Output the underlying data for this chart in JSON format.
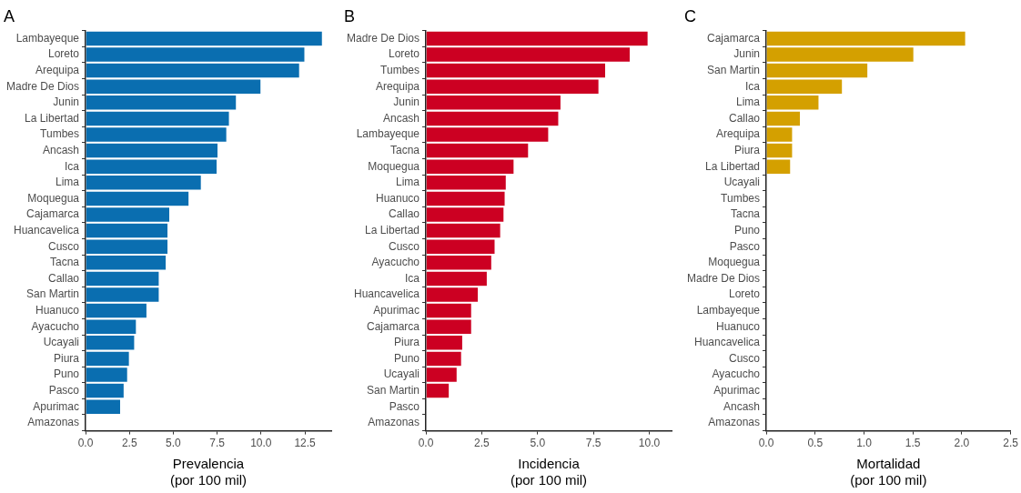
{
  "chart_data": [
    {
      "type": "bar",
      "orientation": "horizontal",
      "title": "A",
      "xlabel": "Prevalencia\n(por 100 mil)",
      "categories": [
        "Lambayeque",
        "Loreto",
        "Arequipa",
        "Madre De Dios",
        "Junin",
        "La Libertad",
        "Tumbes",
        "Ancash",
        "Ica",
        "Lima",
        "Moquegua",
        "Cajamarca",
        "Huancavelica",
        "Cusco",
        "Tacna",
        "Callao",
        "San Martin",
        "Huanuco",
        "Ayacucho",
        "Ucayali",
        "Piura",
        "Puno",
        "Pasco",
        "Apurimac",
        "Amazonas"
      ],
      "color": "#0a6eb0",
      "values": [
        13.5,
        12.5,
        12.2,
        10.0,
        8.6,
        8.2,
        8.05,
        7.55,
        7.5,
        6.6,
        5.9,
        4.8,
        4.7,
        4.7,
        4.6,
        4.2,
        4.2,
        3.5,
        2.9,
        2.8,
        2.5,
        2.4,
        2.2,
        2.0,
        0
      ],
      "xlim": [
        0,
        14
      ],
      "xticks": [
        {
          "value": 0,
          "label": "0.0"
        },
        {
          "value": 2.5,
          "label": "2.5"
        },
        {
          "value": 5,
          "label": "5.0"
        },
        {
          "value": 7.5,
          "label": "7.5"
        },
        {
          "value": 10,
          "label": "10.0"
        },
        {
          "value": 12.5,
          "label": "12.5"
        }
      ],
      "grid": false,
      "legend": false
    },
    {
      "type": "bar",
      "orientation": "horizontal",
      "title": "B",
      "xlabel": "Incidencia\n(por 100 mil)",
      "categories": [
        "Madre De Dios",
        "Loreto",
        "Tumbes",
        "Arequipa",
        "Junin",
        "Ancash",
        "Lambayeque",
        "Tacna",
        "Moquegua",
        "Lima",
        "Huanuco",
        "Callao",
        "La Libertad",
        "Cusco",
        "Ayacucho",
        "Ica",
        "Huancavelica",
        "Apurimac",
        "Cajamarca",
        "Piura",
        "Puno",
        "Ucayali",
        "San Martin",
        "Pasco",
        "Amazonas"
      ],
      "color": "#cc0022",
      "values": [
        9.95,
        9.15,
        8.05,
        7.75,
        6.05,
        5.95,
        5.5,
        4.6,
        3.95,
        3.6,
        3.55,
        3.5,
        3.35,
        3.1,
        2.95,
        2.75,
        2.35,
        2.05,
        2.05,
        1.65,
        1.6,
        1.4,
        1.05,
        0,
        0
      ],
      "xlim": [
        0,
        11
      ],
      "xticks": [
        {
          "value": 0,
          "label": "0.0"
        },
        {
          "value": 2.5,
          "label": "2.5"
        },
        {
          "value": 5,
          "label": "5.0"
        },
        {
          "value": 7.5,
          "label": "7.5"
        },
        {
          "value": 10,
          "label": "10.0"
        }
      ],
      "grid": false,
      "legend": false
    },
    {
      "type": "bar",
      "orientation": "horizontal",
      "title": "C",
      "xlabel": "Mortalidad\n(por 100 mil)",
      "categories": [
        "Cajamarca",
        "Junin",
        "San Martin",
        "Ica",
        "Lima",
        "Callao",
        "Arequipa",
        "Piura",
        "La Libertad",
        "Ucayali",
        "Tumbes",
        "Tacna",
        "Puno",
        "Pasco",
        "Moquegua",
        "Madre De Dios",
        "Loreto",
        "Lambayeque",
        "Huanuco",
        "Huancavelica",
        "Cusco",
        "Ayacucho",
        "Apurimac",
        "Ancash",
        "Amazonas"
      ],
      "color": "#d4a000",
      "values": [
        2.04,
        1.51,
        1.04,
        0.78,
        0.54,
        0.35,
        0.27,
        0.27,
        0.25,
        0,
        0,
        0,
        0,
        0,
        0,
        0,
        0,
        0,
        0,
        0,
        0,
        0,
        0,
        0,
        0
      ],
      "xlim": [
        0,
        2.5
      ],
      "xticks": [
        {
          "value": 0,
          "label": "0.0"
        },
        {
          "value": 0.5,
          "label": "0.5"
        },
        {
          "value": 1,
          "label": "1.0"
        },
        {
          "value": 1.5,
          "label": "1.5"
        },
        {
          "value": 2,
          "label": "2.0"
        },
        {
          "value": 2.5,
          "label": "2.5"
        }
      ],
      "grid": false,
      "legend": false
    }
  ]
}
